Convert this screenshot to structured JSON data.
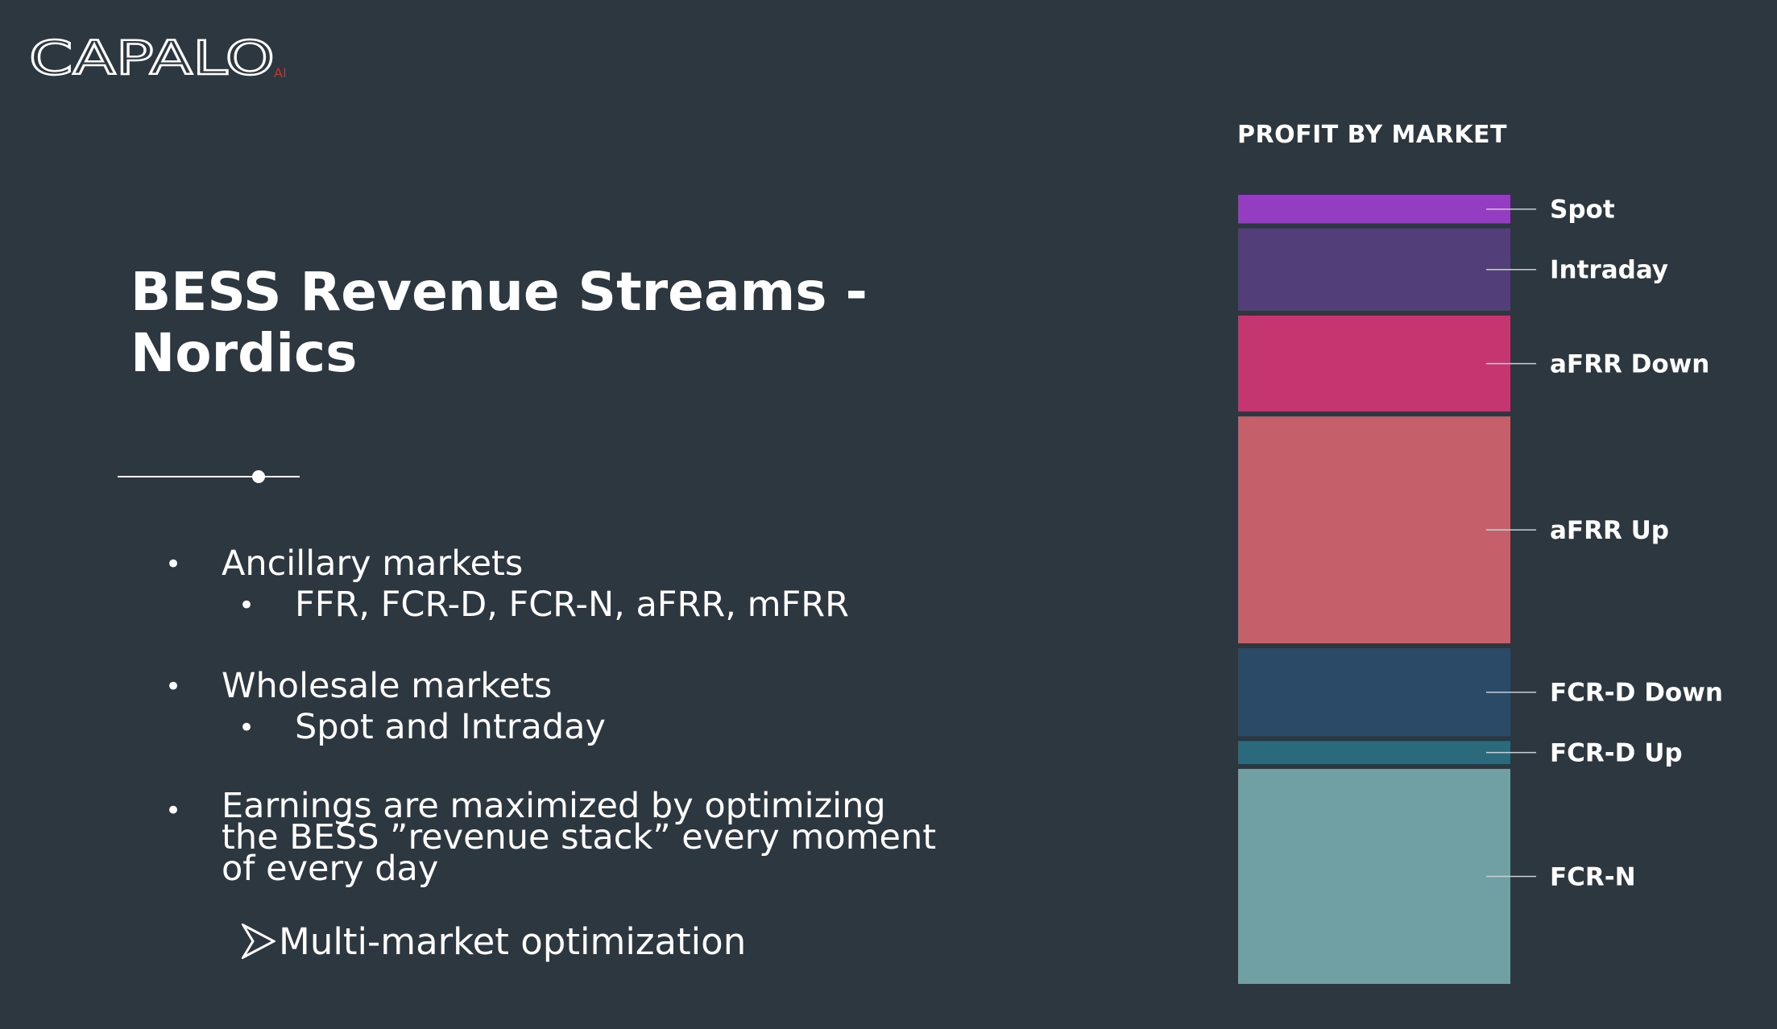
{
  "logo": {
    "text": "CAPALO",
    "suffix": "AI",
    "accent_color": "#c8302e"
  },
  "title": {
    "line1": "BESS Revenue Streams -",
    "line2": "Nordics"
  },
  "bullets": [
    {
      "text": "Ancillary markets",
      "sub": "FFR, FCR-D, FCR-N, aFRR, mFRR"
    },
    {
      "text": "Wholesale markets",
      "sub": "Spot and Intraday"
    }
  ],
  "earnings": {
    "lines": [
      "Earnings are maximized by optimizing",
      "the BESS ”revenue stack” every moment",
      "of every day"
    ]
  },
  "conclusion": {
    "icon": "arrow-right-icon",
    "text": "Multi-market optimization"
  },
  "chart_data": {
    "type": "bar",
    "title": "PROFIT BY MARKET",
    "stacked": true,
    "segments": [
      {
        "name": "Spot",
        "value": 3.6,
        "color": "#953dc2"
      },
      {
        "name": "Intraday",
        "value": 10.4,
        "color": "#523e78"
      },
      {
        "name": "aFRR Down",
        "value": 12.1,
        "color": "#c53570"
      },
      {
        "name": "aFRR Up",
        "value": 28.6,
        "color": "#c5606a"
      },
      {
        "name": "FCR-D Down",
        "value": 11.1,
        "color": "#2a4a68"
      },
      {
        "name": "FCR-D Up",
        "value": 2.9,
        "color": "#2a6a7c"
      },
      {
        "name": "FCR-N",
        "value": 27.1,
        "color": "#70a0a3"
      }
    ]
  }
}
